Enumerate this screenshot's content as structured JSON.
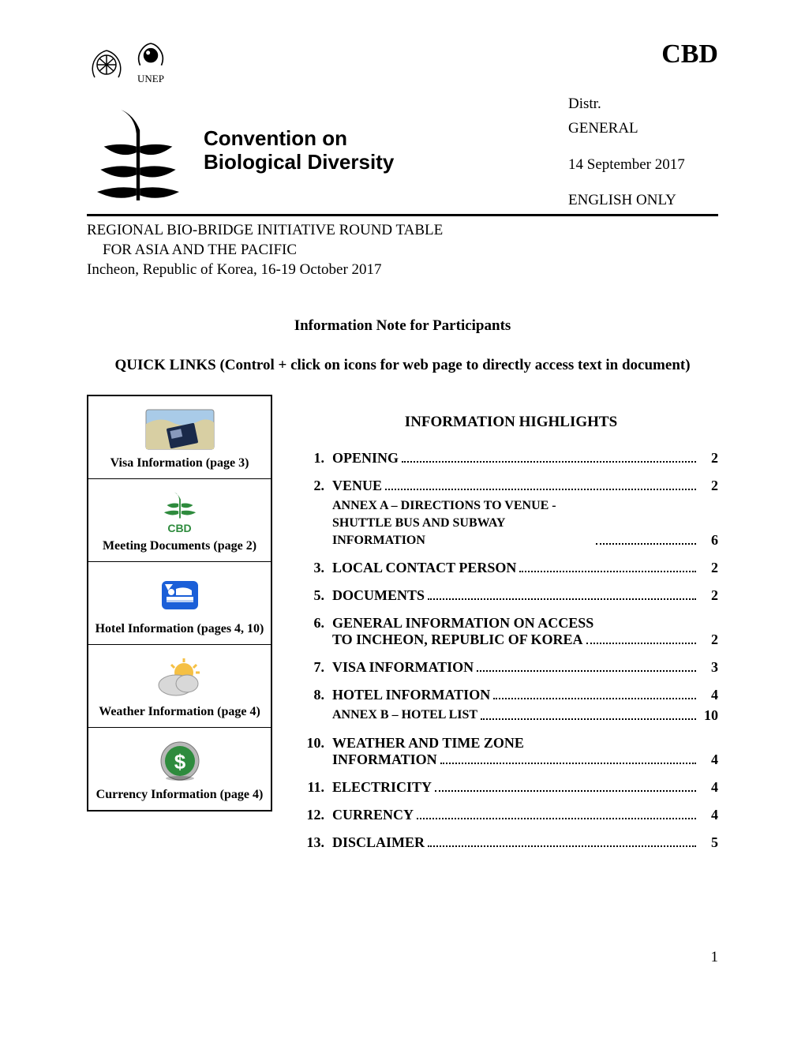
{
  "header": {
    "unep_label": "UNEP",
    "acronym": "CBD",
    "convention_line1": "Convention on",
    "convention_line2": "Biological Diversity",
    "distr_label": "Distr.",
    "distr_value": "GENERAL",
    "date": "14 September 2017",
    "language": "ENGLISH ONLY"
  },
  "meeting": {
    "line1": "REGIONAL BIO-BRIDGE INITIATIVE ROUND TABLE",
    "line2": "FOR ASIA AND THE PACIFIC",
    "line3": "Incheon, Republic of Korea, 16-19 October 2017"
  },
  "titles": {
    "info_note": "Information Note for Participants",
    "quick_links": "QUICK LINKS (Control + click on icons for web page to directly access text in document)",
    "highlights": "INFORMATION HIGHLIGHTS"
  },
  "quicklinks": [
    {
      "label": "Visa Information (page 3)",
      "icon": "visa"
    },
    {
      "label": "Meeting Documents (page 2)",
      "icon": "cbd"
    },
    {
      "label": "Hotel Information (pages 4, 10)",
      "icon": "hotel"
    },
    {
      "label": "Weather Information (page 4)",
      "icon": "weather"
    },
    {
      "label": "Currency Information (page 4)",
      "icon": "currency"
    }
  ],
  "cbd_icon_text": "CBD",
  "toc": [
    {
      "num": "1.",
      "label": "OPENING",
      "page": "2"
    },
    {
      "num": "2.",
      "label": "VENUE",
      "page": "2",
      "sub": {
        "label": "ANNEX A – DIRECTIONS TO VENUE - SHUTTLE BUS AND SUBWAY INFORMATION",
        "page": "6"
      }
    },
    {
      "num": "3.",
      "label": "LOCAL CONTACT PERSON",
      "page": "2"
    },
    {
      "num": "5.",
      "label": "DOCUMENTS",
      "page": "2"
    },
    {
      "num": "6.",
      "label_lines": [
        "GENERAL INFORMATION ON ACCESS",
        "TO INCHEON, REPUBLIC OF KOREA"
      ],
      "page": "2"
    },
    {
      "num": "7.",
      "label": "VISA INFORMATION",
      "page": "3"
    },
    {
      "num": "8.",
      "label": "HOTEL INFORMATION",
      "page": "4",
      "sub": {
        "label": "ANNEX B – HOTEL LIST",
        "page": "10"
      }
    },
    {
      "num": "10.",
      "label_lines": [
        "WEATHER AND TIME ZONE",
        "INFORMATION"
      ],
      "page": "4"
    },
    {
      "num": "11.",
      "label": "ELECTRICITY",
      "page": "4"
    },
    {
      "num": "12.",
      "label": "CURRENCY",
      "page": "4"
    },
    {
      "num": "13.",
      "label": "DISCLAIMER",
      "page": "5"
    }
  ],
  "page_number": "1",
  "colors": {
    "cbd_green": "#2e8b3d",
    "hotel_blue": "#1b5fd8",
    "map_land": "#d8cfa3",
    "map_water": "#a9cbe8",
    "weather_sun": "#f5c044",
    "weather_cloud": "#d8d8d8",
    "currency_bg": "#b8b8b8",
    "currency_fg": "#2e8b3d"
  }
}
